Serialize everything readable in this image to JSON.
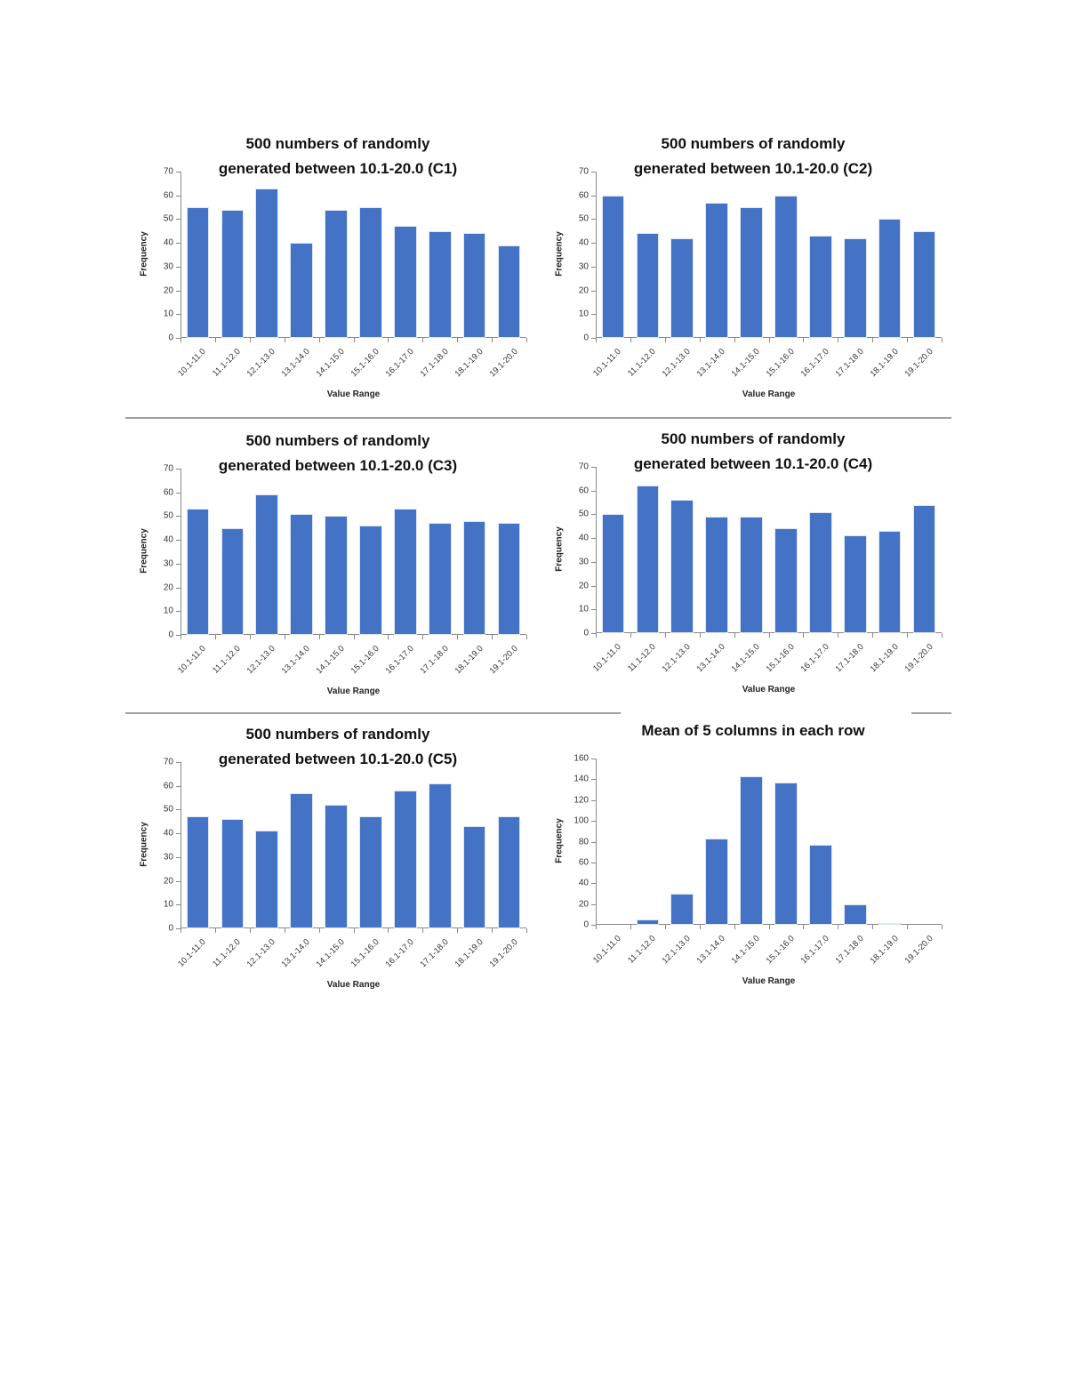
{
  "colors": {
    "bar": "#4472C4",
    "axis": "#888888",
    "divider": "#a0a0a0"
  },
  "chart_data": [
    {
      "id": "c1",
      "type": "bar",
      "title": "500 numbers of randomly generated between 10.1-20.0 (C1)",
      "title_lines": [
        "500 numbers of randomly",
        "generated between 10.1-20.0 (C1)"
      ],
      "xlabel": "Value Range",
      "ylabel": "Frequency",
      "ylim": [
        0,
        70
      ],
      "yticks": [
        0,
        10,
        20,
        30,
        40,
        50,
        60,
        70
      ],
      "grid": false,
      "legend": null,
      "categories": [
        "10.1-11.0",
        "11.1-12.0",
        "12.1-13.0",
        "13.1-14.0",
        "14.1-15.0",
        "15.1-16.0",
        "16.1-17.0",
        "17.1-18.0",
        "18.1-19.0",
        "19.1-20.0"
      ],
      "values": [
        55,
        54,
        63,
        40,
        54,
        55,
        47,
        45,
        44,
        39
      ]
    },
    {
      "id": "c2",
      "type": "bar",
      "title": "500 numbers of randomly generated between 10.1-20.0 (C2)",
      "title_lines": [
        "500 numbers of randomly",
        "generated between 10.1-20.0 (C2)"
      ],
      "xlabel": "Value Range",
      "ylabel": "Frequency",
      "ylim": [
        0,
        70
      ],
      "yticks": [
        0,
        10,
        20,
        30,
        40,
        50,
        60,
        70
      ],
      "grid": false,
      "legend": null,
      "categories": [
        "10.1-11.0",
        "11.1-12.0",
        "12.1-13.0",
        "13.1-14.0",
        "14.1-15.0",
        "15.1-16.0",
        "16.1-17.0",
        "17.1-18.0",
        "18.1-19.0",
        "19.1-20.0"
      ],
      "values": [
        60,
        44,
        42,
        57,
        55,
        60,
        43,
        42,
        50,
        45
      ]
    },
    {
      "id": "c3",
      "type": "bar",
      "title": "500 numbers of randomly generated between 10.1-20.0 (C3)",
      "title_lines": [
        "500 numbers of randomly",
        "generated between 10.1-20.0 (C3)"
      ],
      "xlabel": "Value Range",
      "ylabel": "Frequency",
      "ylim": [
        0,
        70
      ],
      "yticks": [
        0,
        10,
        20,
        30,
        40,
        50,
        60,
        70
      ],
      "grid": false,
      "legend": null,
      "categories": [
        "10.1-11.0",
        "11.1-12.0",
        "12.1-13.0",
        "13.1-14.0",
        "14.1-15.0",
        "15.1-16.0",
        "16.1-17.0",
        "17.1-18.0",
        "18.1-19.0",
        "19.1-20.0"
      ],
      "values": [
        53,
        45,
        59,
        51,
        50,
        46,
        53,
        47,
        48,
        47
      ]
    },
    {
      "id": "c4",
      "type": "bar",
      "title": "500 numbers of randomly generated between 10.1-20.0 (C4)",
      "title_lines": [
        "500 numbers of randomly",
        "generated between 10.1-20.0 (C4)"
      ],
      "xlabel": "Value Range",
      "ylabel": "Frequency",
      "ylim": [
        0,
        70
      ],
      "yticks": [
        0,
        10,
        20,
        30,
        40,
        50,
        60,
        70
      ],
      "grid": false,
      "legend": null,
      "categories": [
        "10.1-11.0",
        "11.1-12.0",
        "12.1-13.0",
        "13.1-14.0",
        "14.1-15.0",
        "15.1-16.0",
        "16.1-17.0",
        "17.1-18.0",
        "18.1-19.0",
        "19.1-20.0"
      ],
      "values": [
        50,
        62,
        56,
        49,
        49,
        44,
        51,
        41,
        43,
        54
      ]
    },
    {
      "id": "c5",
      "type": "bar",
      "title": "500 numbers of randomly generated between 10.1-20.0 (C5)",
      "title_lines": [
        "500 numbers of randomly",
        "generated between 10.1-20.0 (C5)"
      ],
      "xlabel": "Value Range",
      "ylabel": "Frequency",
      "ylim": [
        0,
        70
      ],
      "yticks": [
        0,
        10,
        20,
        30,
        40,
        50,
        60,
        70
      ],
      "grid": false,
      "legend": null,
      "categories": [
        "10.1-11.0",
        "11.1-12.0",
        "12.1-13.0",
        "13.1-14.0",
        "14.1-15.0",
        "15.1-16.0",
        "16.1-17.0",
        "17.1-18.0",
        "18.1-19.0",
        "19.1-20.0"
      ],
      "values": [
        47,
        46,
        41,
        57,
        52,
        47,
        58,
        61,
        43,
        47
      ]
    },
    {
      "id": "mean",
      "type": "bar",
      "title": "Mean of 5 columns in each row",
      "title_lines": [
        "Mean of 5 columns in each row"
      ],
      "xlabel": "Value Range",
      "ylabel": "Frequency",
      "ylim": [
        0,
        160
      ],
      "yticks": [
        0,
        20,
        40,
        60,
        80,
        100,
        120,
        140,
        160
      ],
      "grid": false,
      "legend": null,
      "categories": [
        "10.1-11.0",
        "11.1-12.0",
        "12.1-13.0",
        "13.1-14.0",
        "14.1-15.0",
        "15.1-16.0",
        "16.1-17.0",
        "17.1-18.0",
        "18.1-19.0",
        "19.1-20.0"
      ],
      "values": [
        0,
        5,
        30,
        83,
        143,
        137,
        77,
        20,
        1,
        0
      ]
    }
  ]
}
